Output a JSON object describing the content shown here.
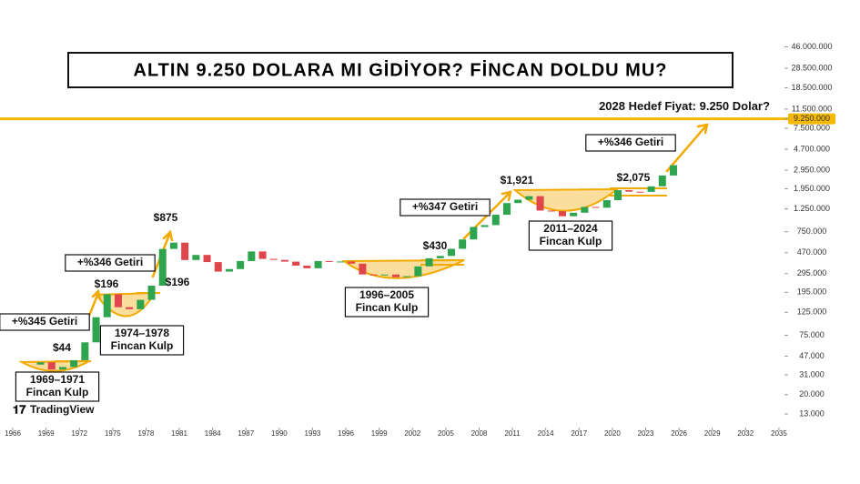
{
  "chart_data": {
    "type": "candlestick",
    "title": "ALTIN 9.250 DOLARA MI GİDİYOR? FİNCAN DOLDU MU?",
    "brand": "TradingView",
    "x": [
      1968,
      1969,
      1970,
      1971,
      1972,
      1973,
      1974,
      1975,
      1976,
      1977,
      1978,
      1979,
      1980,
      1981,
      1982,
      1983,
      1984,
      1985,
      1986,
      1987,
      1988,
      1989,
      1990,
      1991,
      1992,
      1993,
      1994,
      1995,
      1996,
      1997,
      1998,
      1999,
      2000,
      2001,
      2002,
      2003,
      2004,
      2005,
      2006,
      2007,
      2008,
      2009,
      2010,
      2011,
      2012,
      2013,
      2014,
      2015,
      2016,
      2017,
      2018,
      2019,
      2020,
      2021,
      2022,
      2023,
      2024,
      2025
    ],
    "open": [
      39,
      41,
      35,
      37,
      43,
      64,
      112,
      187,
      140,
      134,
      165,
      226,
      512,
      589,
      400,
      448,
      382,
      309,
      327,
      391,
      484,
      410,
      401,
      386,
      353,
      333,
      391,
      383,
      387,
      369,
      290,
      288,
      290,
      273,
      279,
      347,
      416,
      438,
      513,
      632,
      834,
      870,
      1096,
      1421,
      1531,
      1657,
      1202,
      1184,
      1060,
      1146,
      1303,
      1281,
      1517,
      1895,
      1829,
      1824,
      2063,
      2625
    ],
    "close": [
      41,
      35,
      37,
      43,
      64,
      112,
      187,
      140,
      134,
      165,
      226,
      512,
      589,
      400,
      448,
      382,
      309,
      327,
      391,
      484,
      410,
      401,
      386,
      353,
      333,
      391,
      383,
      387,
      369,
      290,
      288,
      290,
      273,
      279,
      347,
      416,
      438,
      513,
      632,
      834,
      870,
      1096,
      1421,
      1531,
      1657,
      1202,
      1184,
      1060,
      1146,
      1303,
      1281,
      1517,
      1895,
      1829,
      1824,
      2063,
      2625,
      3300
    ],
    "up_color": "#2ea44f",
    "down_color": "#e0454b",
    "log_scale": true,
    "grid": false,
    "xlim": [
      1964.85,
      2035.5
    ],
    "xticks": [
      1966,
      1969,
      1972,
      1975,
      1978,
      1981,
      1984,
      1987,
      1990,
      1993,
      1996,
      1999,
      2002,
      2005,
      2008,
      2011,
      2014,
      2017,
      2020,
      2023,
      2026,
      2029,
      2032,
      2035
    ],
    "ylim": [
      10,
      58000
    ],
    "yticks": [
      {
        "value": 13,
        "label": "13.000"
      },
      {
        "value": 20,
        "label": "20.000"
      },
      {
        "value": 31,
        "label": "31.000"
      },
      {
        "value": 47,
        "label": "47.000"
      },
      {
        "value": 75,
        "label": "75.000"
      },
      {
        "value": 125,
        "label": "125.000"
      },
      {
        "value": 195,
        "label": "195.000"
      },
      {
        "value": 295,
        "label": "295.000"
      },
      {
        "value": 470,
        "label": "470.000"
      },
      {
        "value": 750,
        "label": "750.000"
      },
      {
        "value": 1250,
        "label": "1.250.000"
      },
      {
        "value": 1950,
        "label": "1.950.000"
      },
      {
        "value": 2950,
        "label": "2.950.000"
      },
      {
        "value": 4700,
        "label": "4.700.000"
      },
      {
        "value": 7500,
        "label": "7.500.000"
      },
      {
        "value": 9250,
        "label": "9.250.000"
      },
      {
        "value": 11500,
        "label": "11.500.000"
      },
      {
        "value": 18500,
        "label": "18.500.000"
      },
      {
        "value": 28500,
        "label": "28.500.000"
      },
      {
        "value": 46000,
        "label": "46.000.000"
      }
    ],
    "target_line": {
      "value": 9250,
      "color": "#f5b800",
      "label": "2028 Hedef Fiyat: 9.250 Dolar?"
    },
    "annotations": [
      {
        "lines": [
          "$44"
        ]
      },
      {
        "lines": [
          "1969–1971",
          "Fincan Kulp"
        ]
      },
      {
        "lines": [
          "+%345 Getiri"
        ]
      },
      {
        "lines": [
          "$196"
        ]
      },
      {
        "lines": [
          "+%346 Getiri"
        ]
      },
      {
        "lines": [
          "1974–1978",
          "Fincan Kulp"
        ]
      },
      {
        "lines": [
          "$196"
        ]
      },
      {
        "lines": [
          "$875"
        ]
      },
      {
        "lines": [
          "1996–2005",
          "Fincan Kulp"
        ]
      },
      {
        "lines": [
          "$430"
        ]
      },
      {
        "lines": [
          "+%347 Getiri"
        ]
      },
      {
        "lines": [
          "$1,921"
        ]
      },
      {
        "lines": [
          "2011–2024",
          "Fincan Kulp"
        ]
      },
      {
        "lines": [
          "$2,075"
        ]
      },
      {
        "lines": [
          "+%346 Getiri"
        ]
      }
    ]
  }
}
